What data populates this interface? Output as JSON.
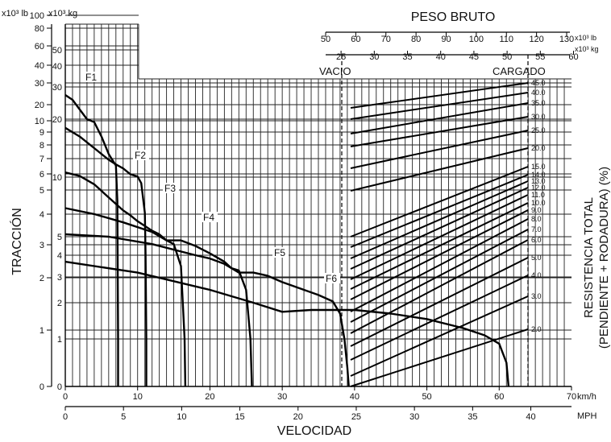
{
  "chart_data": {
    "type": "line",
    "title": "",
    "left_axis": {
      "label": "TRACCIÓN",
      "unit_lb": "x10³ lb",
      "unit_kg": "x10³ kg",
      "lb_ticks": [
        "0",
        "1",
        "2",
        "3",
        "4",
        "5",
        "6",
        "7",
        "8",
        "9",
        "10",
        "20",
        "30",
        "40",
        "60",
        "80",
        "100"
      ],
      "kg_ticks": [
        "0",
        "1",
        "2",
        "3",
        "4",
        "5",
        "10",
        "20",
        "30",
        "40",
        "50"
      ]
    },
    "bottom_axis": {
      "label": "VELOCIDAD",
      "kmh_unit": "km/h",
      "mph_unit": "MPH",
      "kmh_ticks": [
        "0",
        "10",
        "20",
        "30",
        "40",
        "50",
        "60",
        "70"
      ],
      "mph_ticks": [
        "0",
        "5",
        "10",
        "15",
        "20",
        "25",
        "30",
        "35",
        "40"
      ]
    },
    "top_axis": {
      "label": "PESO BRUTO",
      "lb_unit": "x10³ lb",
      "kg_unit": "x10³ kg",
      "lb_ticks": [
        "50",
        "60",
        "70",
        "80",
        "90",
        "100",
        "110",
        "120",
        "130"
      ],
      "kg_ticks": [
        "25",
        "30",
        "35",
        "40",
        "45",
        "50",
        "55",
        "60"
      ],
      "empty_label": "VACIO",
      "loaded_label": "CARGADO"
    },
    "right_axis": {
      "label_line1": "RESISTENCIA TOTAL",
      "label_line2": "(PENDIENTE + RODADURA) (%)",
      "grades": [
        "2.0",
        "3.0",
        "4.0",
        "5.0",
        "6.0",
        "7.0",
        "8.0",
        "9.0",
        "10.0",
        "11.0",
        "12.0",
        "13.0",
        "14.0",
        "15.0",
        "20.0",
        "25.0",
        "30.0",
        "35.0",
        "40.0",
        "45.0"
      ]
    },
    "series": [
      {
        "name": "F1",
        "speed_kmh": [
          0,
          1,
          2,
          3,
          4,
          5,
          6,
          7,
          7.2,
          7.3,
          7.3
        ],
        "traction_kg": [
          27.5,
          26,
          23,
          20,
          19.5,
          17,
          14,
          12,
          8,
          1,
          0
        ]
      },
      {
        "name": "F2",
        "speed_kmh": [
          0,
          2,
          4,
          6,
          7,
          8,
          9,
          10,
          10.5,
          11,
          11.1,
          11.2,
          11.2
        ],
        "traction_kg": [
          18.5,
          17,
          15,
          13,
          12.2,
          11.5,
          10.5,
          10.1,
          9.5,
          7,
          4,
          1,
          0
        ]
      },
      {
        "name": "F3",
        "speed_kmh": [
          0,
          2,
          4,
          6,
          8,
          9,
          10,
          12,
          13,
          14,
          15,
          16,
          16.5,
          16.6
        ],
        "traction_kg": [
          10.8,
          10.2,
          9.4,
          8.3,
          7.2,
          6.8,
          6.3,
          5.5,
          5.2,
          4.8,
          4.6,
          3.5,
          1,
          0
        ]
      },
      {
        "name": "F4",
        "speed_kmh": [
          0,
          4,
          8,
          12,
          14,
          16,
          18,
          20,
          22,
          23,
          24,
          25,
          25.6,
          25.8
        ],
        "traction_kg": [
          7.4,
          6.9,
          6.2,
          5.4,
          4.8,
          4.8,
          4.5,
          4.1,
          3.7,
          3.4,
          3.3,
          2.5,
          1,
          0
        ]
      },
      {
        "name": "F5",
        "speed_kmh": [
          0,
          6,
          12,
          18,
          20,
          22,
          24,
          26,
          28,
          30,
          33,
          35,
          37,
          38,
          38.6,
          39,
          39.2
        ],
        "traction_kg": [
          5.2,
          5.0,
          4.6,
          4.0,
          3.85,
          3.6,
          3.2,
          3.2,
          3.05,
          2.8,
          2.5,
          2.3,
          2.05,
          1.7,
          1.0,
          0.4,
          0
        ]
      },
      {
        "name": "F6",
        "speed_kmh": [
          0,
          10,
          20,
          26,
          30,
          34,
          37,
          40,
          45,
          50,
          55,
          58,
          60,
          61,
          61.3
        ],
        "traction_kg": [
          3.7,
          3.2,
          2.5,
          2.0,
          1.75,
          1.8,
          1.8,
          1.8,
          1.7,
          1.55,
          1.3,
          1.1,
          0.9,
          0.5,
          0
        ]
      }
    ]
  }
}
